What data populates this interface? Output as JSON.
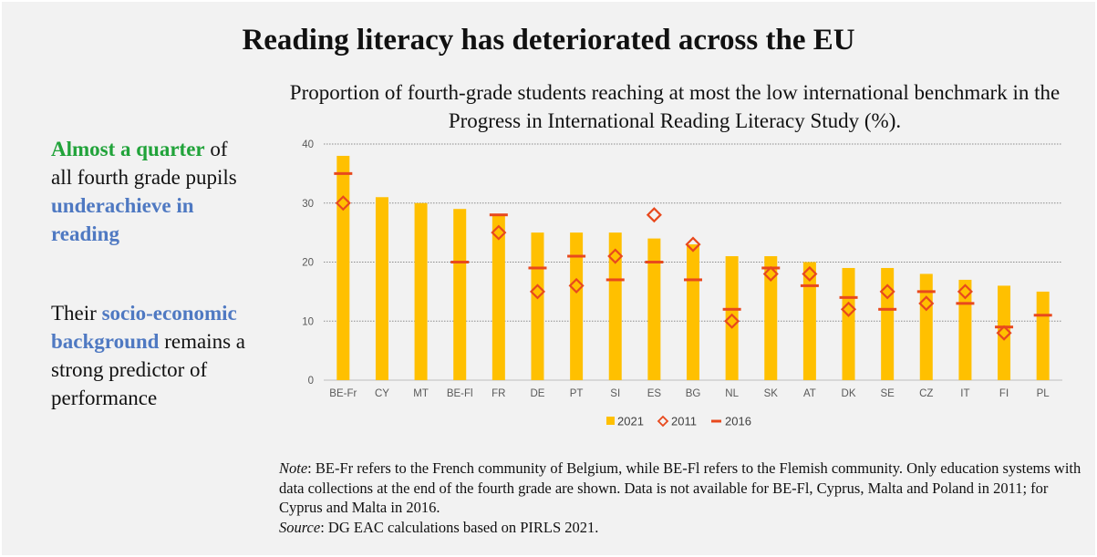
{
  "title": "Reading literacy has deteriorated across the EU",
  "left_text": {
    "p1": {
      "green": "Almost a quarter",
      "mid": " of all fourth grade pupils ",
      "blue": "underachieve in reading"
    },
    "p2": {
      "start": "Their ",
      "blue": "socio-economic background",
      "end": " remains a strong predictor of performance"
    }
  },
  "note": {
    "note_label": "Note",
    "note_text": ": BE-Fr refers to the French community of Belgium, while BE-Fl refers to the Flemish community. Only education systems with data collections at the end of the fourth grade are shown. Data is not available for BE-Fl, Cyprus, Malta and Poland in 2011; for Cyprus and Malta in 2016.",
    "source_label": "Source",
    "source_text": ": DG EAC calculations based on PIRLS 2021."
  },
  "chart_data": {
    "type": "bar",
    "title": "Proportion of fourth-grade students reaching at most the low international benchmark in the Progress in International Reading Literacy Study (%).",
    "categories": [
      "BE-Fr",
      "CY",
      "MT",
      "BE-Fl",
      "FR",
      "DE",
      "PT",
      "SI",
      "ES",
      "BG",
      "NL",
      "SK",
      "AT",
      "DK",
      "SE",
      "CZ",
      "IT",
      "FI",
      "PL"
    ],
    "series": [
      {
        "name": "2021",
        "marker": "bar",
        "color": "#ffc000",
        "values": [
          38,
          31,
          30,
          29,
          28,
          25,
          25,
          25,
          24,
          23,
          21,
          21,
          20,
          19,
          19,
          18,
          17,
          16,
          15
        ]
      },
      {
        "name": "2011",
        "marker": "diamond",
        "color": "#e8491d",
        "values": [
          30,
          null,
          null,
          null,
          25,
          15,
          16,
          21,
          28,
          23,
          10,
          18,
          18,
          12,
          15,
          13,
          15,
          8,
          null
        ]
      },
      {
        "name": "2016",
        "marker": "dash",
        "color": "#e8491d",
        "values": [
          35,
          null,
          null,
          20,
          28,
          19,
          21,
          17,
          20,
          17,
          12,
          19,
          16,
          14,
          12,
          15,
          13,
          9,
          11
        ]
      }
    ],
    "ylim": [
      0,
      40
    ],
    "yticks": [
      0,
      10,
      20,
      30,
      40
    ],
    "grid": true,
    "legend": "bottom"
  }
}
